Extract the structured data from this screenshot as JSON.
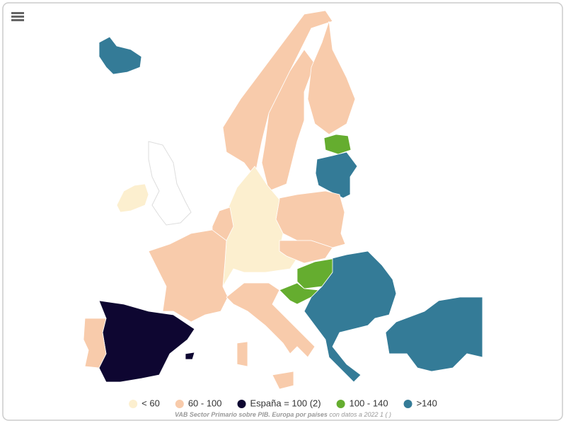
{
  "legend": {
    "items": [
      {
        "label": "< 60",
        "color": "#fcefcf"
      },
      {
        "label": "60 - 100",
        "color": "#f8cbab"
      },
      {
        "label": "España = 100 (2)",
        "color": "#0e0631"
      },
      {
        "label": "100 - 140",
        "color": "#65ad2f"
      },
      {
        "label": ">140",
        "color": "#347b97"
      }
    ]
  },
  "caption": {
    "title": "VAB Sector Primario sobre PIB. Europa por países",
    "note": "con datos a 2022 1 ( )"
  }
}
